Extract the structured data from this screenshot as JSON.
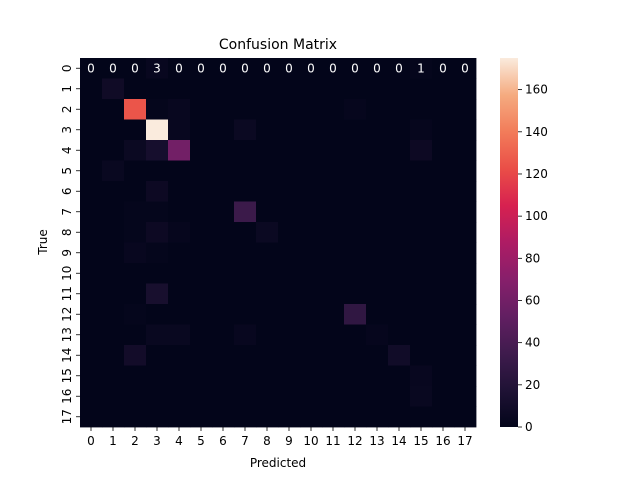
{
  "chart_data": {
    "type": "heatmap",
    "title": "Confusion Matrix",
    "xlabel": "Predicted",
    "ylabel": "True",
    "x_categories": [
      "0",
      "1",
      "2",
      "3",
      "4",
      "5",
      "6",
      "7",
      "8",
      "9",
      "10",
      "11",
      "12",
      "13",
      "14",
      "15",
      "16",
      "17"
    ],
    "y_categories": [
      "0",
      "1",
      "2",
      "3",
      "4",
      "5",
      "6",
      "7",
      "8",
      "9",
      "10",
      "11",
      "12",
      "13",
      "14",
      "15",
      "16",
      "17"
    ],
    "colorbar_range": [
      0,
      175
    ],
    "colorbar_ticks": [
      0,
      20,
      40,
      60,
      80,
      100,
      120,
      140,
      160
    ],
    "colormap": "rocket",
    "first_row_annotations": [
      "0",
      "0",
      "0",
      "3",
      "0",
      "0",
      "0",
      "0",
      "0",
      "0",
      "0",
      "0",
      "0",
      "0",
      "0",
      "1",
      "0",
      "0"
    ],
    "matrix": [
      [
        0,
        0,
        0,
        3,
        0,
        0,
        0,
        0,
        0,
        0,
        0,
        0,
        0,
        0,
        0,
        1,
        0,
        0
      ],
      [
        0,
        8,
        0,
        0,
        0,
        0,
        0,
        0,
        0,
        0,
        0,
        0,
        0,
        0,
        0,
        0,
        0,
        0
      ],
      [
        0,
        0,
        125,
        1,
        3,
        0,
        0,
        0,
        0,
        0,
        0,
        0,
        2,
        0,
        0,
        0,
        0,
        0
      ],
      [
        0,
        0,
        0,
        175,
        3,
        0,
        0,
        5,
        0,
        0,
        0,
        0,
        0,
        0,
        0,
        2,
        0,
        0
      ],
      [
        0,
        0,
        5,
        12,
        60,
        0,
        0,
        0,
        0,
        0,
        0,
        0,
        0,
        0,
        0,
        6,
        0,
        0
      ],
      [
        0,
        4,
        0,
        0,
        0,
        0,
        0,
        0,
        0,
        0,
        0,
        0,
        0,
        0,
        0,
        0,
        0,
        0
      ],
      [
        0,
        0,
        0,
        6,
        0,
        0,
        0,
        0,
        0,
        0,
        0,
        0,
        0,
        0,
        0,
        0,
        0,
        0
      ],
      [
        0,
        0,
        1,
        1,
        0,
        0,
        0,
        33,
        0,
        0,
        0,
        0,
        0,
        0,
        0,
        0,
        0,
        0
      ],
      [
        0,
        0,
        1,
        6,
        2,
        0,
        0,
        0,
        5,
        0,
        0,
        0,
        0,
        0,
        0,
        0,
        0,
        0
      ],
      [
        0,
        0,
        3,
        1,
        0,
        0,
        0,
        0,
        0,
        0,
        0,
        0,
        0,
        0,
        0,
        0,
        0,
        0
      ],
      [
        0,
        0,
        0,
        0,
        0,
        0,
        0,
        0,
        0,
        0,
        0,
        0,
        0,
        0,
        0,
        0,
        0,
        0
      ],
      [
        0,
        0,
        0,
        13,
        0,
        0,
        0,
        0,
        0,
        0,
        0,
        0,
        0,
        0,
        0,
        0,
        0,
        0
      ],
      [
        0,
        0,
        1,
        0,
        0,
        0,
        0,
        0,
        0,
        0,
        0,
        0,
        27,
        0,
        0,
        0,
        0,
        0
      ],
      [
        0,
        0,
        0,
        4,
        4,
        0,
        0,
        3,
        0,
        0,
        0,
        0,
        0,
        2,
        0,
        0,
        0,
        0
      ],
      [
        0,
        0,
        10,
        0,
        0,
        0,
        0,
        0,
        0,
        0,
        0,
        0,
        0,
        0,
        9,
        0,
        0,
        0
      ],
      [
        0,
        0,
        0,
        0,
        0,
        0,
        0,
        0,
        0,
        0,
        0,
        0,
        0,
        0,
        0,
        3,
        0,
        0
      ],
      [
        0,
        0,
        0,
        0,
        0,
        0,
        0,
        0,
        0,
        0,
        0,
        0,
        0,
        0,
        0,
        4,
        0,
        0
      ],
      [
        0,
        0,
        0,
        0,
        0,
        0,
        0,
        0,
        0,
        0,
        0,
        0,
        0,
        0,
        0,
        0,
        0,
        0
      ]
    ]
  }
}
